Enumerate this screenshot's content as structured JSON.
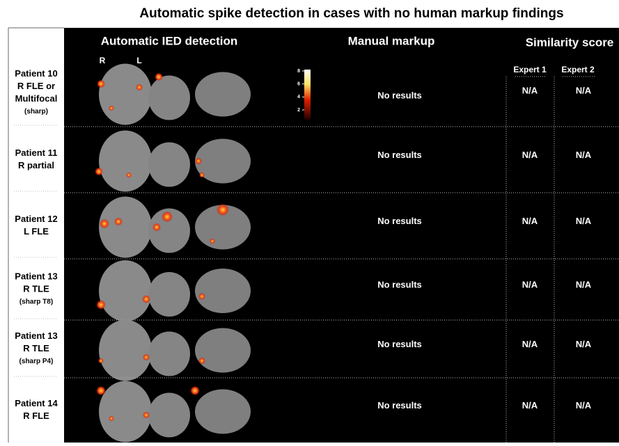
{
  "header": {
    "title": "Automatic spike detection in cases with no human markup findings"
  },
  "columns": {
    "detection": "Automatic IED detection",
    "manual": "Manual markup",
    "similarity": "Similarity score",
    "experts": [
      "Expert 1",
      "Expert 2"
    ],
    "sides": [
      "R",
      "L"
    ]
  },
  "colorbar": {
    "ticks": [
      2,
      4,
      6,
      8
    ]
  },
  "rows": [
    {
      "label": [
        "Patient 10",
        "R FLE or",
        "Multifocal"
      ],
      "note": "(sharp)",
      "manual": "No results",
      "scores": [
        "N/A",
        "N/A"
      ]
    },
    {
      "label": [
        "Patient 11",
        "R partial"
      ],
      "manual": "No results",
      "scores": [
        "N/A",
        "N/A"
      ]
    },
    {
      "label": [
        "Patient 12",
        "L FLE"
      ],
      "manual": "No results",
      "scores": [
        "N/A",
        "N/A"
      ]
    },
    {
      "label": [
        "Patient 13",
        "R TLE"
      ],
      "note": "(sharp T8)",
      "manual": "No results",
      "scores": [
        "N/A",
        "N/A"
      ]
    },
    {
      "label": [
        "Patient 13",
        "R TLE"
      ],
      "note": "(sharp P4)",
      "manual": "No results",
      "scores": [
        "N/A",
        "N/A"
      ]
    },
    {
      "label": [
        "Patient 14",
        "R FLE"
      ],
      "manual": "No results",
      "scores": [
        "N/A",
        "N/A"
      ]
    }
  ]
}
